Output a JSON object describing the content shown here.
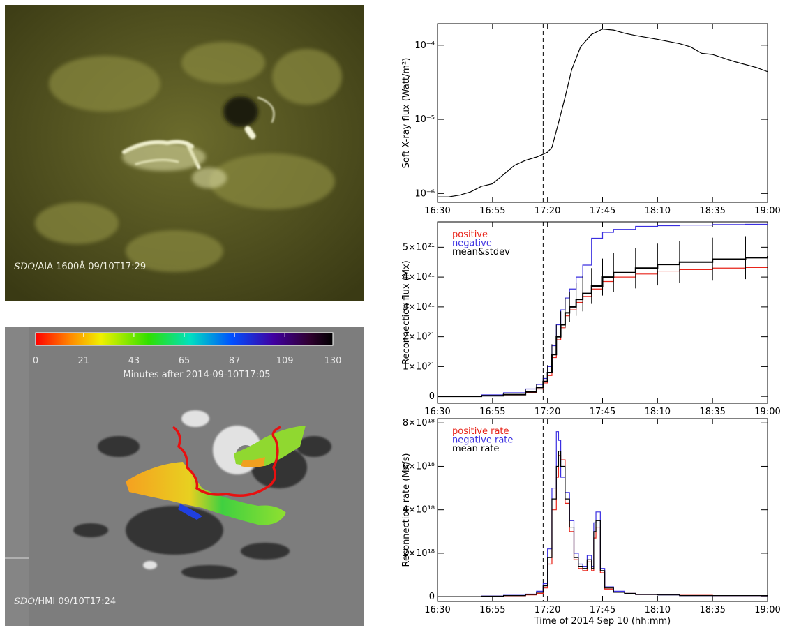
{
  "panels": {
    "aia": {
      "label_italic": "SDO",
      "label": "/AIA 1600Å 09/10T17:29"
    },
    "hmi": {
      "label_italic": "SDO",
      "label": "/HMI  09/10T17:24",
      "colorbar": {
        "lim": [
          0,
          130
        ],
        "ticks": [
          0,
          21,
          43,
          65,
          87,
          109,
          130
        ],
        "label": "Minutes after 2014-09-10T17:05"
      }
    }
  },
  "chart_data": [
    {
      "type": "line",
      "log_y": true,
      "ylabel": "Soft X-ray flux (Watt/m²)",
      "xlim": [
        "16:30",
        "19:00"
      ],
      "xticks": [
        "16:30",
        "16:55",
        "17:20",
        "17:45",
        "18:10",
        "18:35",
        "19:00"
      ],
      "ylim": [
        7.6e-07,
        0.000195
      ],
      "yticks": [
        {
          "value": 1e-06,
          "label": "10⁻⁶"
        },
        {
          "value": 1e-05,
          "label": "10⁻⁵"
        },
        {
          "value": 0.0001,
          "label": "10⁻⁴"
        }
      ],
      "vline": "17:18",
      "x": [
        "16:30",
        "16:35",
        "16:40",
        "16:45",
        "16:50",
        "16:55",
        "17:00",
        "17:05",
        "17:10",
        "17:15",
        "17:20",
        "17:22",
        "17:25",
        "17:28",
        "17:31",
        "17:35",
        "17:40",
        "17:45",
        "17:50",
        "17:55",
        "18:00",
        "18:10",
        "18:20",
        "18:25",
        "18:30",
        "18:35",
        "18:45",
        "18:55",
        "19:00"
      ],
      "series": [
        {
          "color": "#000000",
          "values": [
            9e-07,
            9e-07,
            9.5e-07,
            1.05e-06,
            1.25e-06,
            1.35e-06,
            1.8e-06,
            2.4e-06,
            2.8e-06,
            3.1e-06,
            3.6e-06,
            4.2e-06,
            9e-06,
            2e-05,
            4.7e-05,
            9.5e-05,
            0.00014,
            0.000165,
            0.00016,
            0.000145,
            0.000135,
            0.00012,
            0.000105,
            9.5e-05,
            7.8e-05,
            7.5e-05,
            6e-05,
            5e-05,
            4.4e-05
          ]
        }
      ]
    },
    {
      "type": "line",
      "ylabel": "Reconnection flux (Mx)",
      "xlim": [
        "16:30",
        "19:00"
      ],
      "xticks": [
        "16:30",
        "16:55",
        "17:20",
        "17:45",
        "18:10",
        "18:35",
        "19:00"
      ],
      "ylim": [
        -2.3e+20,
        5.85e+21
      ],
      "yticks": [
        0,
        {
          "value": 1e+21,
          "label": "1×10²¹"
        },
        {
          "value": 2e+21,
          "label": "2×10²¹"
        },
        {
          "value": 3e+21,
          "label": "3×10²¹"
        },
        {
          "value": 4e+21,
          "label": "4×10²¹"
        },
        {
          "value": 5e+21,
          "label": "5×10²¹"
        }
      ],
      "vline": "17:18",
      "x": [
        "16:30",
        "16:50",
        "17:00",
        "17:10",
        "17:15",
        "17:18",
        "17:20",
        "17:22",
        "17:24",
        "17:26",
        "17:28",
        "17:30",
        "17:33",
        "17:36",
        "17:40",
        "17:45",
        "17:50",
        "18:00",
        "18:10",
        "18:20",
        "18:35",
        "18:50",
        "19:00"
      ],
      "series": [
        {
          "name": "positive",
          "color": "#e8241a",
          "values": [
            0,
            2e+19,
            5e+19,
            1.2e+20,
            2.5e+20,
            4.5e+20,
            7e+20,
            1.3e+21,
            1.9e+21,
            2.3e+21,
            2.7e+21,
            2.9e+21,
            3.15e+21,
            3.35e+21,
            3.6e+21,
            3.85e+21,
            4e+21,
            4.1e+21,
            4.2e+21,
            4.25e+21,
            4.3e+21,
            4.32e+21,
            4.35e+21
          ]
        },
        {
          "name": "negative",
          "color": "#3a2fe0",
          "values": [
            0,
            5e+19,
            1.2e+20,
            2.5e+20,
            4e+20,
            6e+20,
            1e+21,
            1.7e+21,
            2.4e+21,
            2.9e+21,
            3.3e+21,
            3.6e+21,
            4e+21,
            4.4e+21,
            5.3e+21,
            5.5e+21,
            5.6e+21,
            5.7e+21,
            5.72e+21,
            5.74e+21,
            5.76e+21,
            5.77e+21,
            5.78e+21
          ]
        },
        {
          "name": "mean&stdev",
          "color": "#000000",
          "values": [
            0,
            2e+19,
            6e+19,
            1.5e+20,
            3e+20,
            5e+20,
            8e+20,
            1.4e+21,
            2e+21,
            2.4e+21,
            2.8e+21,
            3e+21,
            3.25e+21,
            3.45e+21,
            3.7e+21,
            4e+21,
            4.15e+21,
            4.3e+21,
            4.42e+21,
            4.5e+21,
            4.6e+21,
            4.65e+21,
            4.7e+21
          ],
          "errors": [
            0,
            1e+19,
            3e+19,
            8e+19,
            1.2e+20,
            2e+20,
            2.5e+20,
            3.5e+20,
            4e+20,
            4.5e+20,
            5e+20,
            5e+20,
            5.5e+20,
            6e+20,
            6e+20,
            6.2e+20,
            6.5e+20,
            6.8e+20,
            7e+20,
            7e+20,
            7.2e+20,
            7.2e+20,
            7.2e+20
          ]
        }
      ]
    },
    {
      "type": "line",
      "ylabel": "Reconnection rate (Mx/s)",
      "xlabel": "Time of 2014 Sep 10 (hh:mm)",
      "xlim": [
        "16:30",
        "19:00"
      ],
      "xticks": [
        "16:30",
        "16:55",
        "17:20",
        "17:45",
        "18:10",
        "18:35",
        "19:00"
      ],
      "ylim": [
        -2.2e+17,
        8.2e+18
      ],
      "yticks": [
        0,
        {
          "value": 2e+18,
          "label": "2×10¹⁸"
        },
        {
          "value": 4e+18,
          "label": "4×10¹⁸"
        },
        {
          "value": 6e+18,
          "label": "6×10¹⁸"
        },
        {
          "value": 8e+18,
          "label": "8×10¹⁸"
        }
      ],
      "vline": "17:18",
      "x": [
        "16:30",
        "16:50",
        "17:00",
        "17:10",
        "17:15",
        "17:18",
        "17:20",
        "17:22",
        "17:24",
        "17:25",
        "17:26",
        "17:28",
        "17:30",
        "17:32",
        "17:34",
        "17:36",
        "17:38",
        "17:40",
        "17:41",
        "17:42",
        "17:44",
        "17:46",
        "17:50",
        "17:55",
        "18:00",
        "18:10",
        "18:20",
        "18:35",
        "18:50",
        "19:00"
      ],
      "series": [
        {
          "name": "positive rate",
          "color": "#e8241a",
          "values": [
            0,
            2e+16,
            4e+16,
            8e+16,
            1.5e+17,
            4e+17,
            1.5e+18,
            4e+18,
            5.5e+18,
            6.5e+18,
            6.3e+18,
            4.3e+18,
            3e+18,
            1.7e+18,
            1.3e+18,
            1.2e+18,
            1.6e+18,
            1.2e+18,
            2.7e+18,
            3.2e+18,
            1.1e+18,
            3.5e+17,
            2e+17,
            1.5e+17,
            1e+17,
            1e+17,
            6e+16,
            5e+16,
            5e+16,
            3e+16
          ]
        },
        {
          "name": "negative rate",
          "color": "#3a2fe0",
          "values": [
            0,
            3e+16,
            6e+16,
            1.2e+17,
            2.5e+17,
            6e+17,
            2.2e+18,
            5e+18,
            7.6e+18,
            7.2e+18,
            5.5e+18,
            4.8e+18,
            3.5e+18,
            2e+18,
            1.5e+18,
            1.4e+18,
            1.9e+18,
            1.4e+18,
            3.4e+18,
            3.9e+18,
            1.3e+18,
            4.5e+17,
            2.5e+17,
            1.5e+17,
            1e+17,
            8e+16,
            5e+16,
            5e+16,
            5e+16,
            3e+16
          ]
        },
        {
          "name": "mean rate",
          "color": "#000000",
          "values": [
            0,
            2e+16,
            5e+16,
            1e+17,
            2e+17,
            5e+17,
            1.8e+18,
            4.5e+18,
            6e+18,
            6.7e+18,
            6e+18,
            4.5e+18,
            3.2e+18,
            1.8e+18,
            1.4e+18,
            1.3e+18,
            1.7e+18,
            1.3e+18,
            3e+18,
            3.5e+18,
            1.2e+18,
            4e+17,
            2e+17,
            1.5e+17,
            1e+17,
            8e+16,
            5e+16,
            5e+16,
            5e+16,
            3e+16
          ]
        }
      ]
    }
  ]
}
